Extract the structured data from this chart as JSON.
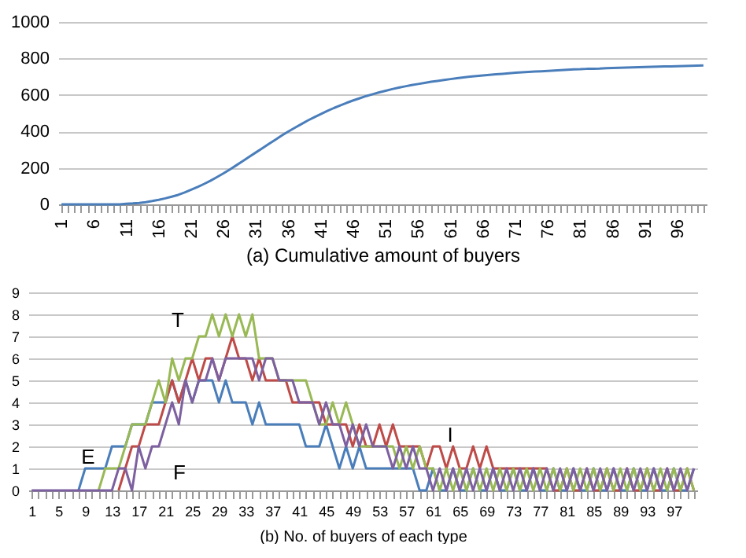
{
  "chart_data": [
    {
      "type": "line",
      "xlabel": "(a) Cumulative amount of buyers",
      "categories": [
        "1",
        null,
        null,
        null,
        null,
        "6",
        null,
        null,
        null,
        null,
        "11",
        null,
        null,
        null,
        null,
        "16",
        null,
        null,
        null,
        null,
        "21",
        null,
        null,
        null,
        null,
        "26",
        null,
        null,
        null,
        null,
        "31",
        null,
        null,
        null,
        null,
        "36",
        null,
        null,
        null,
        null,
        "41",
        null,
        null,
        null,
        null,
        "46",
        null,
        null,
        null,
        null,
        "51",
        null,
        null,
        null,
        null,
        "56",
        null,
        null,
        null,
        null,
        "61",
        null,
        null,
        null,
        null,
        "66",
        null,
        null,
        null,
        null,
        "71",
        null,
        null,
        null,
        null,
        "76",
        null,
        null,
        null,
        null,
        "81",
        null,
        null,
        null,
        null,
        "86",
        null,
        null,
        null,
        null,
        "91",
        null,
        null,
        null,
        null,
        "96",
        null,
        null,
        null,
        null
      ],
      "series": [
        {
          "color": "#4a7ebb",
          "values": [
            0,
            0,
            0,
            0,
            0,
            0,
            0,
            0,
            0,
            0,
            3,
            5,
            8,
            12,
            18,
            25,
            33,
            42,
            52,
            65,
            80,
            95,
            112,
            130,
            150,
            170,
            192,
            215,
            238,
            262,
            285,
            308,
            332,
            355,
            378,
            400,
            420,
            440,
            460,
            478,
            495,
            512,
            528,
            543,
            557,
            570,
            582,
            594,
            604,
            614,
            623,
            632,
            640,
            647,
            654,
            660,
            666,
            672,
            677,
            682,
            687,
            692,
            696,
            700,
            704,
            707,
            710,
            713,
            716,
            719,
            722,
            724,
            726,
            728,
            730,
            732,
            734,
            736,
            738,
            740,
            741,
            743,
            744,
            745,
            747,
            748,
            749,
            750,
            751,
            752,
            753,
            754,
            755,
            756,
            757,
            758,
            759,
            760,
            761,
            762
          ]
        }
      ],
      "ylim": [
        0,
        1000
      ],
      "yticks": [
        0,
        200,
        400,
        600,
        800,
        1000
      ],
      "grid": "y"
    },
    {
      "type": "line",
      "xlabel": "(b) No. of buyers of each type",
      "categories": [
        "1",
        null,
        null,
        null,
        "5",
        null,
        null,
        null,
        "9",
        null,
        null,
        null,
        "13",
        null,
        null,
        null,
        "17",
        null,
        null,
        null,
        "21",
        null,
        null,
        null,
        "25",
        null,
        null,
        null,
        "29",
        null,
        null,
        null,
        "33",
        null,
        null,
        null,
        "37",
        null,
        null,
        null,
        "41",
        null,
        null,
        null,
        "45",
        null,
        null,
        null,
        "49",
        null,
        null,
        null,
        "53",
        null,
        null,
        null,
        "57",
        null,
        null,
        null,
        "61",
        null,
        null,
        null,
        "65",
        null,
        null,
        null,
        "69",
        null,
        null,
        null,
        "73",
        null,
        null,
        null,
        "77",
        null,
        null,
        null,
        "81",
        null,
        null,
        null,
        "85",
        null,
        null,
        null,
        "89",
        null,
        null,
        null,
        "93",
        null,
        null,
        null,
        "97",
        null,
        null,
        null
      ],
      "series": [
        {
          "name": "E",
          "color": "#4a7ebb",
          "values": [
            null,
            null,
            null,
            null,
            null,
            null,
            null,
            0,
            1,
            1,
            1,
            1,
            2,
            2,
            2,
            3,
            3,
            3,
            4,
            4,
            4,
            5,
            4,
            5,
            4,
            5,
            5,
            5,
            4,
            5,
            4,
            4,
            4,
            3,
            4,
            3,
            3,
            3,
            3,
            3,
            3,
            2,
            2,
            2,
            3,
            2,
            1,
            2,
            1,
            2,
            1,
            1,
            1,
            1,
            1,
            1,
            1,
            1,
            0,
            0,
            1,
            0,
            0,
            1,
            0,
            0,
            1,
            0,
            0,
            1,
            0,
            0,
            1,
            0,
            0,
            1,
            0,
            0,
            1,
            0,
            0,
            1,
            0,
            0,
            1,
            0,
            0,
            1,
            0,
            0,
            1,
            0,
            0,
            1,
            0,
            0,
            1,
            0,
            0,
            1
          ]
        },
        {
          "name": "I",
          "color": "#be4b48",
          "values": [
            null,
            null,
            null,
            null,
            null,
            null,
            null,
            null,
            null,
            null,
            null,
            null,
            null,
            0,
            1,
            2,
            2,
            3,
            3,
            3,
            4,
            5,
            4,
            5,
            6,
            5,
            6,
            6,
            5,
            6,
            7,
            6,
            6,
            5,
            6,
            5,
            5,
            5,
            5,
            4,
            4,
            4,
            4,
            4,
            3,
            3,
            3,
            3,
            2,
            3,
            2,
            2,
            3,
            2,
            3,
            2,
            2,
            2,
            2,
            1,
            2,
            2,
            1,
            2,
            1,
            1,
            2,
            1,
            2,
            1,
            1,
            1,
            1,
            1,
            1,
            1,
            1,
            1,
            0,
            0,
            1,
            0,
            0,
            1,
            0,
            0,
            1,
            0,
            0,
            1,
            0,
            0,
            1,
            0,
            0,
            1,
            0,
            0,
            1,
            0
          ]
        },
        {
          "name": "T",
          "color": "#98b954",
          "values": [
            null,
            null,
            null,
            null,
            null,
            null,
            null,
            null,
            null,
            null,
            0,
            1,
            1,
            1,
            2,
            3,
            3,
            3,
            4,
            5,
            4,
            6,
            5,
            6,
            6,
            7,
            7,
            8,
            7,
            8,
            7,
            8,
            7,
            8,
            6,
            6,
            6,
            5,
            5,
            5,
            5,
            5,
            4,
            3,
            3,
            4,
            3,
            4,
            3,
            2,
            2,
            2,
            2,
            2,
            2,
            1,
            2,
            1,
            2,
            1,
            1,
            0,
            1,
            0,
            1,
            0,
            1,
            0,
            1,
            0,
            1,
            0,
            1,
            0,
            1,
            0,
            1,
            0,
            1,
            0,
            1,
            0,
            1,
            0,
            1,
            0,
            1,
            0,
            1,
            0,
            1,
            0,
            1,
            0,
            1,
            0,
            1,
            0,
            1,
            0
          ]
        },
        {
          "name": "F",
          "color": "#7d60a0",
          "values": [
            0,
            0,
            0,
            0,
            0,
            0,
            0,
            0,
            0,
            0,
            0,
            0,
            0,
            1,
            1,
            0,
            2,
            1,
            2,
            2,
            3,
            4,
            3,
            5,
            4,
            5,
            5,
            6,
            5,
            6,
            6,
            6,
            6,
            6,
            5,
            6,
            6,
            5,
            5,
            5,
            4,
            4,
            4,
            3,
            4,
            3,
            3,
            2,
            3,
            2,
            3,
            2,
            2,
            2,
            1,
            2,
            1,
            2,
            1,
            1,
            0,
            1,
            0,
            1,
            0,
            1,
            0,
            1,
            0,
            1,
            0,
            1,
            0,
            1,
            0,
            1,
            0,
            1,
            0,
            1,
            0,
            1,
            0,
            1,
            0,
            1,
            0,
            1,
            0,
            1,
            0,
            1,
            0,
            1,
            0,
            1,
            0,
            1,
            0,
            1
          ]
        }
      ],
      "ylim": [
        0,
        9
      ],
      "yticks": [
        0,
        1,
        2,
        3,
        4,
        5,
        6,
        7,
        8,
        9
      ],
      "grid": "y"
    }
  ]
}
